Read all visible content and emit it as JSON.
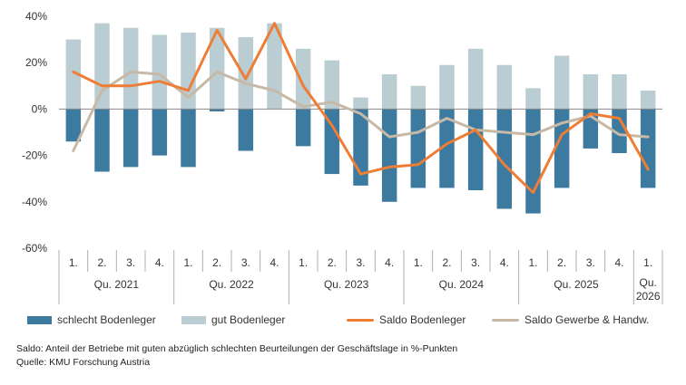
{
  "chart_data": {
    "type": "bar",
    "y_ticks": [
      "40%",
      "20%",
      "0%",
      "-20%",
      "-40%",
      "-60%"
    ],
    "y_tick_values": [
      40,
      20,
      0,
      -20,
      -40,
      -60
    ],
    "ylim": [
      -60,
      40
    ],
    "categories": [
      "1.",
      "2.",
      "3.",
      "4.",
      "1.",
      "2.",
      "3.",
      "4.",
      "1.",
      "2.",
      "3.",
      "4.",
      "1.",
      "2.",
      "3.",
      "4.",
      "1.",
      "2.",
      "3.",
      "4.",
      "1."
    ],
    "year_groups": [
      {
        "label": "Qu. 2021",
        "count": 4
      },
      {
        "label": "Qu. 2022",
        "count": 4
      },
      {
        "label": "Qu. 2023",
        "count": 4
      },
      {
        "label": "Qu. 2024",
        "count": 4
      },
      {
        "label": "Qu. 2025",
        "count": 4
      },
      {
        "label": "Qu.\n2026",
        "count": 1
      }
    ],
    "series": [
      {
        "name": "schlecht Bodenleger",
        "kind": "bar",
        "color": "#3d7aa0",
        "values": [
          -14,
          -27,
          -25,
          -20,
          -25,
          -1,
          -18,
          0,
          -16,
          -28,
          -33,
          -40,
          -34,
          -34,
          -35,
          -43,
          -45,
          -34,
          -17,
          -19,
          -34
        ]
      },
      {
        "name": "gut Bodenleger",
        "kind": "bar",
        "color": "#b9cdd3",
        "values": [
          30,
          37,
          35,
          32,
          33,
          35,
          31,
          37,
          26,
          21,
          5,
          15,
          10,
          19,
          26,
          19,
          9,
          23,
          15,
          15,
          8
        ]
      },
      {
        "name": "Saldo Bodenleger",
        "kind": "line",
        "color": "#ee7d36",
        "values": [
          16,
          10,
          10,
          12,
          8,
          34,
          13,
          37,
          10,
          -7,
          -28,
          -25,
          -24,
          -15,
          -9,
          -24,
          -36,
          -11,
          -2,
          -4,
          -26
        ]
      },
      {
        "name": "Saldo Gewerbe & Handw.",
        "kind": "line",
        "color": "#c7b9a5",
        "values": [
          -18,
          8,
          16,
          15,
          5,
          16,
          11,
          8,
          1,
          3,
          -2,
          -12,
          -10,
          -4,
          -9,
          -10,
          -11,
          -6,
          -3,
          -11,
          -12
        ]
      }
    ],
    "legend_position": "bottom",
    "grid": false
  },
  "notes": {
    "saldo": "Saldo: Anteil der Betriebe mit guten abzüglich schlechten Beurteilungen der Geschäftslage in %-Punkten",
    "quelle": "Quelle: KMU Forschung Austria"
  }
}
